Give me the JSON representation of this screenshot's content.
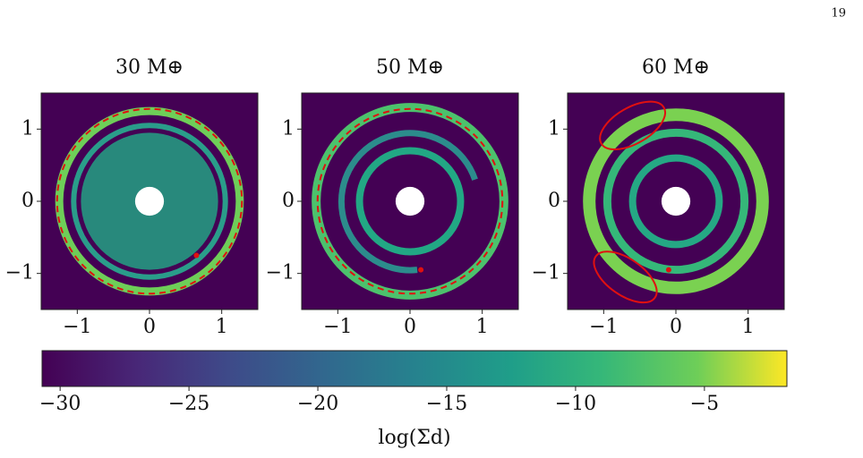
{
  "page_number": "19",
  "panels": [
    {
      "title": "30 M⊕",
      "xlim": [
        -1.5,
        1.5
      ],
      "ylim": [
        -1.5,
        1.5
      ],
      "xticks": [
        {
          "value": -1,
          "label": "−1"
        },
        0,
        1
      ],
      "yticks": [
        {
          "value": -1,
          "label": "−1"
        },
        0,
        1
      ]
    },
    {
      "title": "50 M⊕",
      "xlim": [
        -1.5,
        1.5
      ],
      "ylim": [
        -1.5,
        1.5
      ],
      "xticks": [
        {
          "value": -1,
          "label": "−1"
        },
        0,
        1
      ],
      "yticks": [
        {
          "value": -1,
          "label": "−1"
        },
        0,
        1
      ]
    },
    {
      "title": "60 M⊕",
      "xlim": [
        -1.5,
        1.5
      ],
      "ylim": [
        -1.5,
        1.5
      ],
      "xticks": [
        {
          "value": -1,
          "label": "−1"
        },
        0,
        1
      ],
      "yticks": [
        {
          "value": -1,
          "label": "−1"
        },
        0,
        1
      ]
    }
  ],
  "colorbar": {
    "label": "log(Σd)",
    "lim": [
      -30.7,
      -1.8
    ],
    "ticks": [
      {
        "value": -30,
        "label": "−30"
      },
      {
        "value": -25,
        "label": "−25"
      },
      {
        "value": -20,
        "label": "−20"
      },
      {
        "value": -15,
        "label": "−15"
      },
      {
        "value": -10,
        "label": "−10"
      },
      {
        "value": -5,
        "label": "−5"
      }
    ]
  }
}
